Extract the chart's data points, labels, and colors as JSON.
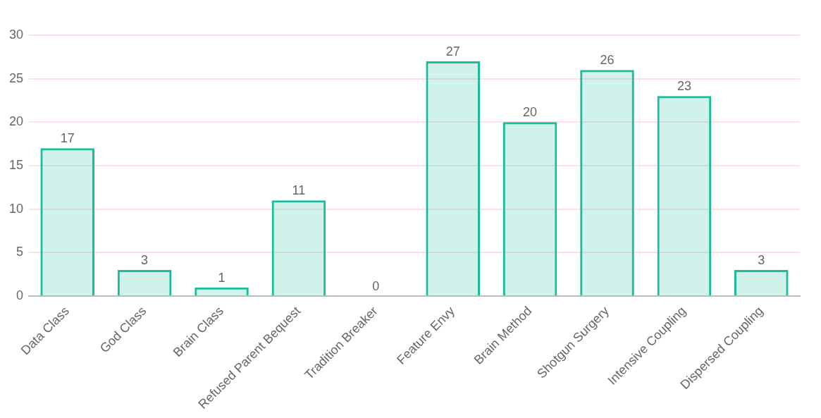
{
  "chart_data": {
    "type": "bar",
    "categories": [
      "Data Class",
      "God Class",
      "Brain Class",
      "Refused Parent Bequest",
      "Tradition Breaker",
      "Feature Envy",
      "Brain Method",
      "Shotgun Surgery",
      "Intensive Coupling",
      "Dispersed Coupling"
    ],
    "series": [
      {
        "color": "#1abc9c",
        "values": [
          17,
          3,
          1,
          11,
          0,
          27,
          20,
          26,
          23,
          3
        ]
      }
    ],
    "ylim": [
      0,
      30
    ],
    "yticks": [
      0,
      5,
      10,
      15,
      20,
      25,
      30
    ],
    "grid": "y",
    "data_labels": true
  }
}
